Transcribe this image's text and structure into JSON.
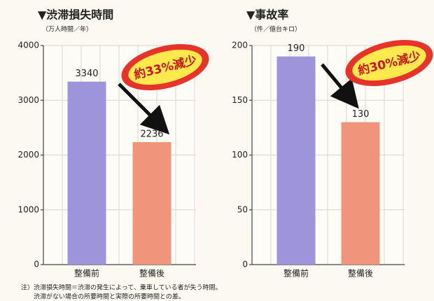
{
  "chart_data": [
    {
      "type": "bar",
      "title": "▼渋滞損失時間",
      "subtitle": "（万人時間／年）",
      "categories": [
        "整備前",
        "整備後"
      ],
      "series": [
        {
          "values": [
            3340,
            2236
          ],
          "colors": [
            "#9d94dc",
            "#f0957c"
          ]
        }
      ],
      "ylim": [
        0,
        4000
      ],
      "yticks": [
        0,
        1000,
        2000,
        3000,
        4000
      ],
      "grid": true,
      "annotation": "約33%減少"
    },
    {
      "type": "bar",
      "title": "▼事故率",
      "subtitle": "（件／億台キロ）",
      "categories": [
        "整備前",
        "整備後"
      ],
      "series": [
        {
          "values": [
            190,
            130
          ],
          "colors": [
            "#9d94dc",
            "#f0957c"
          ]
        }
      ],
      "ylim": [
        0,
        200
      ],
      "yticks": [
        0,
        50,
        100,
        150,
        200
      ],
      "grid": true,
      "annotation": "約30%減少"
    }
  ],
  "notes": [
    "注）渋滞損失時間＝渋滞の発生によって、乗車している者が失う時間。",
    "渋滞がない場合の所要時間と実際の所要時間との差。"
  ]
}
